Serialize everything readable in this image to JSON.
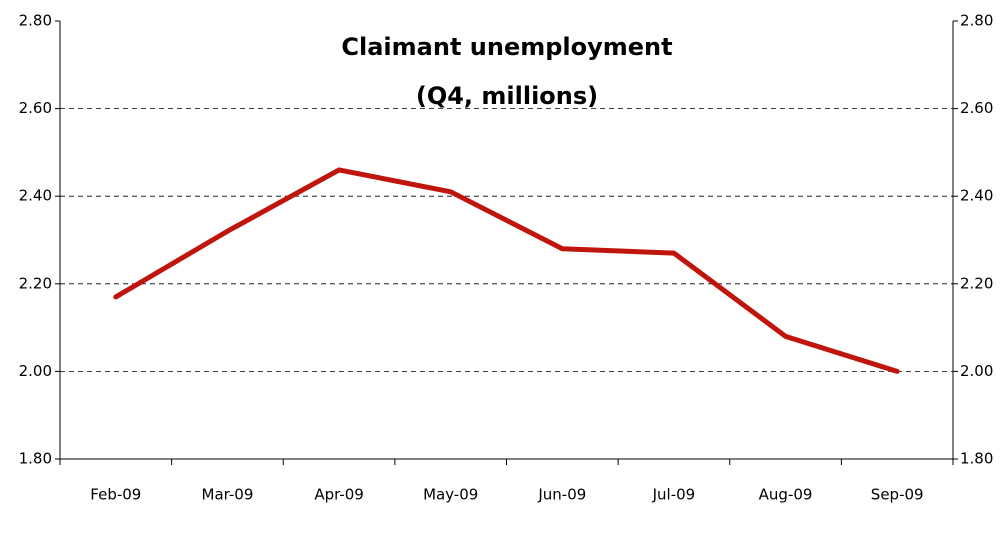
{
  "chart_data": {
    "type": "line",
    "title": "Claimant unemployment",
    "subtitle": "(Q4, millions)",
    "categories": [
      "Feb-09",
      "Mar-09",
      "Apr-09",
      "May-09",
      "Jun-09",
      "Jul-09",
      "Aug-09",
      "Sep-09"
    ],
    "values": [
      2.17,
      2.32,
      2.46,
      2.41,
      2.28,
      2.27,
      2.08,
      2.0
    ],
    "color": "#c0150c",
    "ylim": [
      1.8,
      2.8
    ],
    "yticks": [
      {
        "value": 1.8,
        "label": "1.80"
      },
      {
        "value": 2.0,
        "label": "2.00"
      },
      {
        "value": 2.2,
        "label": "2.20"
      },
      {
        "value": 2.4,
        "label": "2.40"
      },
      {
        "value": 2.6,
        "label": "2.60"
      },
      {
        "value": 2.8,
        "label": "2.80"
      }
    ],
    "y2lim": [
      1.8,
      2.8
    ],
    "y2ticks": [
      {
        "value": 1.8,
        "label": "1.80"
      },
      {
        "value": 2.0,
        "label": "2.00"
      },
      {
        "value": 2.2,
        "label": "2.20"
      },
      {
        "value": 2.4,
        "label": "2.40"
      },
      {
        "value": 2.6,
        "label": "2.60"
      },
      {
        "value": 2.8,
        "label": "2.80"
      }
    ],
    "grid": true
  }
}
